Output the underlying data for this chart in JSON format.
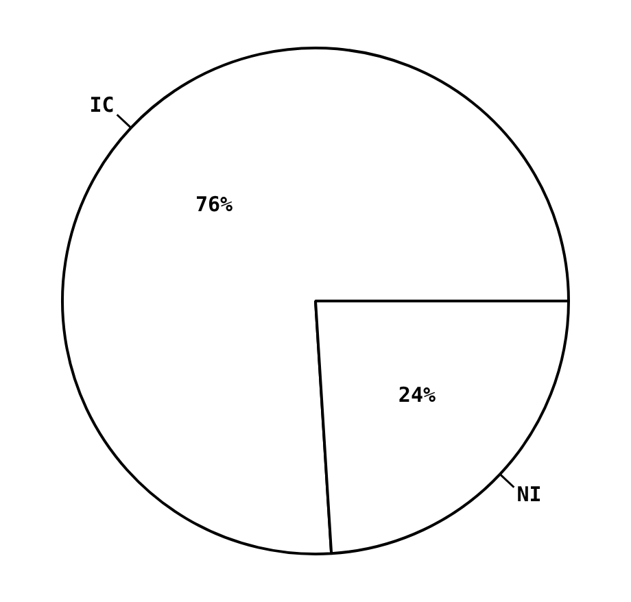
{
  "chart_data": {
    "type": "pie",
    "categories": [
      "IC",
      "NI"
    ],
    "values": [
      76,
      24
    ],
    "colors": [
      "#ffffff",
      "#ffffff"
    ],
    "value_labels": [
      "76%",
      "24%"
    ],
    "legend": false
  }
}
